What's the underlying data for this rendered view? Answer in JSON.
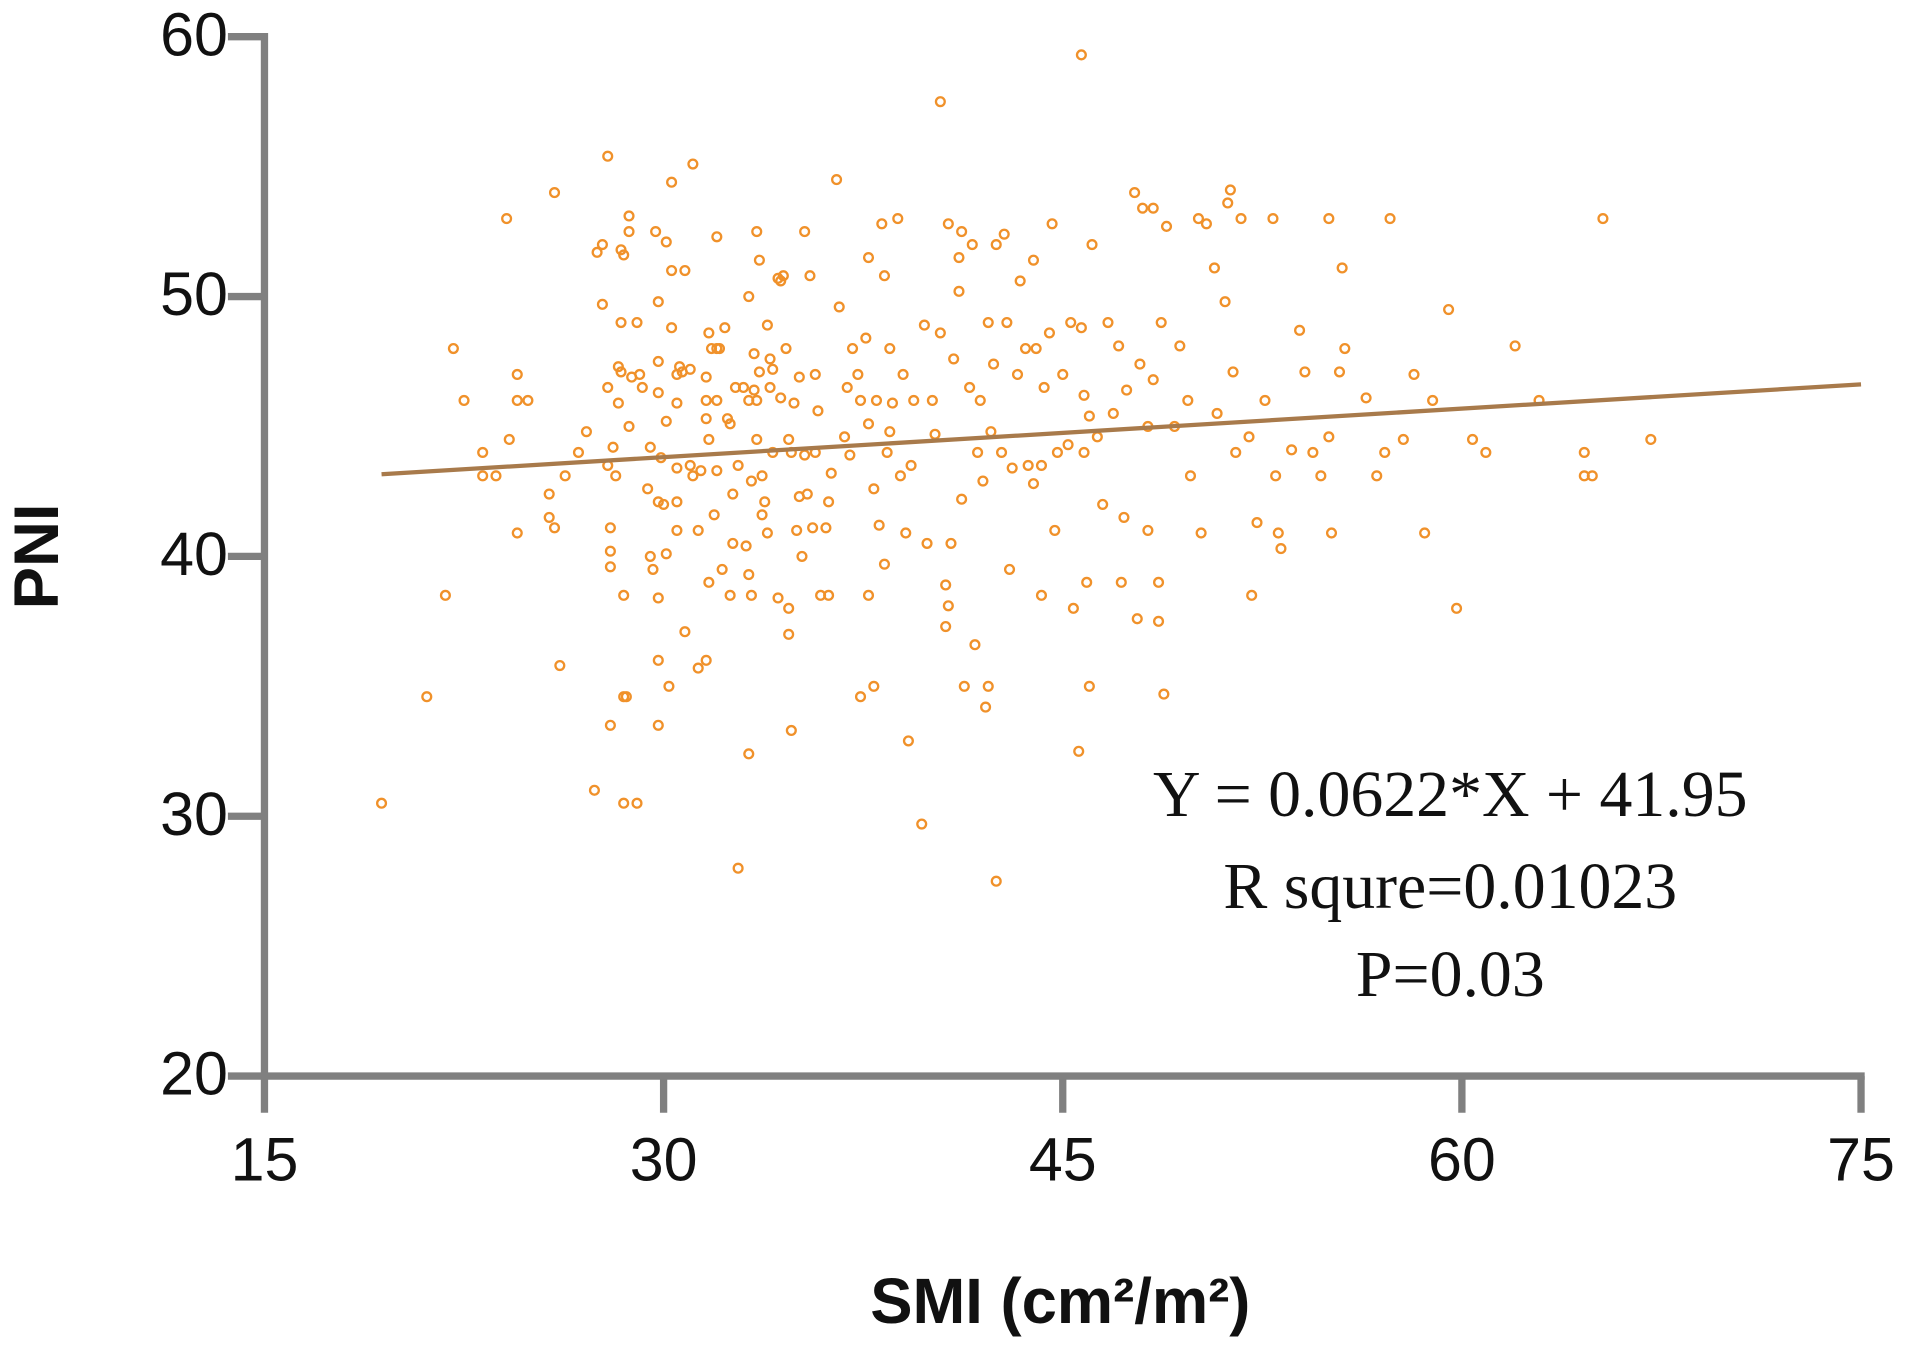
{
  "chart_data": {
    "type": "scatter",
    "x_label": "SMI (cm²/m²)",
    "y_label": "PNI",
    "annotations": [
      "Y = 0.0622*X + 41.95",
      "R squre=0.01023",
      "P=0.03"
    ],
    "xlim": [
      15,
      75
    ],
    "xticks": [
      15,
      30,
      45,
      60,
      75
    ],
    "ylim": [
      20,
      60
    ],
    "yticks": [
      20,
      30,
      40,
      50,
      60
    ],
    "axis_color": "#808080",
    "grid": false,
    "series": [
      {
        "name": "PNI",
        "color": "#f0912a",
        "x": [
          19.4,
          21.1,
          21.8,
          22.1,
          22.5,
          23.2,
          23.2,
          23.7,
          24.1,
          24.2,
          24.5,
          24.5,
          24.5,
          24.9,
          25.7,
          25.7,
          25.9,
          25.9,
          26.1,
          26.3,
          26.8,
          27.1,
          27.4,
          27.5,
          27.7,
          27.7,
          27.9,
          27.9,
          27.9,
          28.0,
          28.0,
          28.0,
          28.0,
          28.1,
          28.2,
          28.3,
          28.3,
          28.4,
          28.4,
          28.5,
          28.4,
          28.5,
          28.5,
          28.5,
          28.6,
          28.7,
          28.7,
          28.7,
          28.8,
          29.0,
          29.0,
          29.1,
          29.2,
          29.4,
          29.5,
          29.5,
          29.6,
          29.7,
          29.8,
          29.8,
          29.8,
          29.8,
          29.8,
          29.8,
          29.8,
          29.9,
          30.0,
          30.1,
          30.1,
          30.1,
          30.2,
          30.3,
          30.3,
          30.3,
          30.5,
          30.5,
          30.5,
          30.5,
          30.5,
          30.6,
          30.7,
          30.8,
          30.8,
          31.0,
          31.0,
          31.1,
          31.1,
          31.3,
          31.3,
          31.4,
          31.6,
          31.6,
          31.6,
          31.6,
          31.7,
          31.7,
          31.7,
          31.8,
          31.9,
          32.0,
          32.0,
          32.0,
          32.0,
          32.1,
          32.2,
          32.3,
          32.4,
          32.5,
          32.5,
          32.6,
          32.6,
          32.7,
          32.8,
          32.8,
          33.0,
          33.1,
          33.2,
          33.2,
          33.2,
          33.2,
          33.3,
          33.3,
          33.4,
          33.4,
          33.5,
          33.5,
          33.5,
          33.6,
          33.6,
          33.7,
          33.7,
          33.8,
          33.9,
          33.9,
          34.0,
          34.0,
          34.1,
          34.1,
          34.3,
          34.3,
          34.4,
          34.4,
          34.5,
          34.6,
          34.7,
          34.7,
          34.7,
          34.8,
          34.8,
          34.9,
          35.0,
          35.1,
          35.1,
          35.2,
          35.3,
          35.3,
          35.4,
          35.5,
          35.6,
          35.7,
          35.7,
          35.8,
          35.9,
          36.1,
          36.2,
          36.2,
          36.3,
          36.5,
          36.6,
          36.8,
          36.9,
          37.0,
          37.1,
          37.3,
          37.4,
          37.4,
          37.6,
          37.7,
          37.7,
          37.9,
          37.7,
          37.9,
          38.0,
          38.1,
          38.2,
          38.3,
          38.3,
          38.4,
          38.5,
          38.5,
          38.6,
          38.8,
          38.9,
          39.0,
          39.1,
          39.2,
          39.3,
          39.4,
          39.7,
          39.8,
          39.9,
          40.1,
          40.2,
          40.4,
          40.4,
          40.6,
          40.6,
          40.7,
          40.7,
          40.8,
          40.9,
          41.1,
          41.1,
          41.2,
          41.2,
          41.3,
          41.5,
          41.6,
          41.7,
          41.8,
          41.9,
          42.0,
          42.1,
          42.2,
          42.2,
          42.3,
          42.4,
          42.5,
          42.5,
          42.7,
          42.8,
          42.9,
          43.0,
          43.1,
          43.3,
          43.4,
          43.6,
          43.7,
          43.9,
          43.9,
          44.0,
          44.2,
          44.2,
          44.3,
          44.5,
          44.6,
          44.7,
          44.8,
          45.0,
          45.2,
          45.3,
          45.4,
          45.6,
          45.7,
          45.7,
          45.8,
          45.8,
          45.9,
          46.0,
          46.0,
          46.1,
          46.3,
          46.5,
          46.7,
          46.9,
          47.1,
          47.2,
          47.3,
          47.4,
          47.7,
          47.8,
          47.9,
          48.0,
          48.2,
          48.2,
          48.4,
          48.4,
          48.6,
          48.6,
          48.7,
          48.8,
          48.9,
          49.2,
          49.4,
          49.7,
          49.8,
          50.1,
          50.2,
          50.4,
          50.7,
          50.8,
          51.1,
          51.2,
          51.3,
          51.4,
          51.5,
          51.7,
          52.0,
          52.1,
          52.3,
          52.6,
          52.9,
          53.0,
          53.1,
          53.2,
          53.6,
          53.9,
          54.1,
          54.4,
          54.7,
          55.0,
          55.0,
          55.1,
          55.4,
          55.5,
          55.6,
          56.4,
          56.8,
          57.1,
          57.3,
          57.8,
          58.2,
          58.6,
          58.9,
          59.5,
          59.8,
          60.4,
          60.9,
          62.0,
          62.9,
          64.6,
          64.6,
          64.9,
          65.3,
          67.1
        ],
        "values": [
          30.5,
          34.6,
          38.5,
          48.0,
          46.0,
          44.0,
          43.1,
          43.1,
          53.0,
          44.5,
          47.0,
          40.9,
          46.0,
          46.0,
          42.4,
          41.5,
          41.1,
          54.0,
          35.8,
          43.1,
          44.0,
          44.8,
          31.0,
          51.7,
          52.0,
          49.7,
          55.4,
          46.5,
          43.5,
          41.1,
          40.2,
          39.6,
          33.5,
          44.2,
          43.1,
          45.9,
          47.3,
          47.1,
          51.8,
          51.6,
          49.0,
          38.5,
          34.6,
          30.5,
          34.6,
          52.5,
          53.1,
          45.0,
          46.9,
          30.5,
          49.0,
          47.0,
          46.5,
          42.6,
          40.0,
          44.2,
          39.5,
          52.5,
          49.8,
          46.3,
          47.5,
          42.1,
          38.4,
          36.0,
          33.5,
          43.8,
          42.0,
          45.2,
          40.1,
          52.1,
          35.0,
          51.0,
          48.8,
          54.4,
          42.1,
          41.0,
          45.9,
          47.0,
          43.4,
          47.3,
          47.1,
          37.1,
          51.0,
          47.2,
          43.5,
          43.1,
          55.1,
          35.7,
          41.0,
          43.3,
          45.3,
          46.9,
          36.0,
          46.0,
          48.6,
          39.0,
          44.5,
          48.0,
          41.6,
          52.3,
          46.0,
          48.0,
          43.3,
          48.0,
          39.5,
          48.8,
          45.3,
          45.1,
          38.5,
          42.4,
          40.5,
          46.5,
          28.0,
          43.5,
          46.5,
          40.4,
          32.4,
          39.3,
          46.0,
          50.0,
          38.5,
          42.9,
          46.4,
          47.8,
          44.5,
          52.5,
          46.0,
          51.4,
          47.1,
          43.1,
          41.6,
          42.1,
          48.9,
          40.9,
          46.5,
          47.6,
          44.0,
          47.2,
          50.7,
          38.4,
          50.6,
          46.1,
          50.8,
          48.0,
          38.0,
          37.0,
          44.5,
          33.3,
          44.0,
          45.9,
          41.0,
          42.3,
          46.9,
          40.0,
          43.9,
          52.5,
          42.4,
          50.8,
          41.1,
          44.0,
          47.0,
          45.6,
          38.5,
          41.1,
          42.1,
          38.5,
          43.2,
          54.5,
          49.6,
          44.6,
          46.5,
          43.9,
          48.0,
          47.0,
          34.6,
          46.0,
          48.4,
          51.5,
          45.1,
          35.0,
          38.5,
          42.6,
          46.0,
          41.2,
          52.8,
          50.8,
          39.7,
          44.0,
          44.8,
          48.0,
          45.9,
          53.0,
          43.1,
          47.0,
          40.9,
          32.9,
          43.5,
          46.0,
          29.7,
          48.9,
          40.5,
          46.0,
          44.7,
          57.5,
          48.6,
          38.9,
          37.3,
          52.8,
          38.1,
          40.5,
          47.6,
          50.2,
          51.5,
          42.2,
          52.5,
          35.0,
          46.5,
          52.0,
          36.6,
          44.0,
          46.0,
          42.9,
          34.2,
          35.0,
          49.0,
          44.8,
          47.4,
          27.5,
          52.0,
          44.0,
          52.4,
          49.0,
          39.5,
          43.4,
          47.0,
          50.6,
          48.0,
          43.5,
          51.4,
          42.8,
          48.0,
          43.5,
          38.5,
          46.5,
          48.6,
          52.8,
          41.0,
          44.0,
          47.0,
          44.3,
          49.0,
          38.0,
          32.5,
          59.3,
          48.8,
          46.2,
          44.0,
          39.0,
          45.4,
          35.0,
          52.0,
          44.6,
          42.0,
          49.0,
          45.5,
          48.1,
          39.0,
          41.5,
          46.4,
          54.0,
          37.6,
          47.4,
          53.4,
          41.0,
          45.0,
          53.4,
          46.8,
          39.0,
          37.5,
          49.0,
          34.7,
          52.7,
          45.0,
          48.1,
          46.0,
          43.1,
          53.0,
          40.9,
          52.8,
          51.1,
          45.5,
          49.8,
          53.6,
          54.1,
          47.1,
          44.0,
          53.0,
          44.6,
          38.5,
          41.3,
          46.0,
          53.0,
          43.1,
          40.9,
          40.3,
          44.1,
          48.7,
          47.1,
          44.0,
          43.1,
          53.0,
          44.6,
          40.9,
          47.1,
          51.1,
          48.0,
          46.1,
          43.1,
          44.0,
          53.0,
          44.5,
          47.0,
          40.9,
          46.0,
          49.5,
          38.0,
          44.5,
          44.0,
          48.1,
          46.0,
          43.1,
          44.0,
          43.1,
          53.0,
          44.5
        ]
      }
    ],
    "fit_line": {
      "color": "#a87a4b",
      "x": [
        19.4,
        75
      ],
      "values": [
        43.16,
        46.62
      ]
    }
  }
}
